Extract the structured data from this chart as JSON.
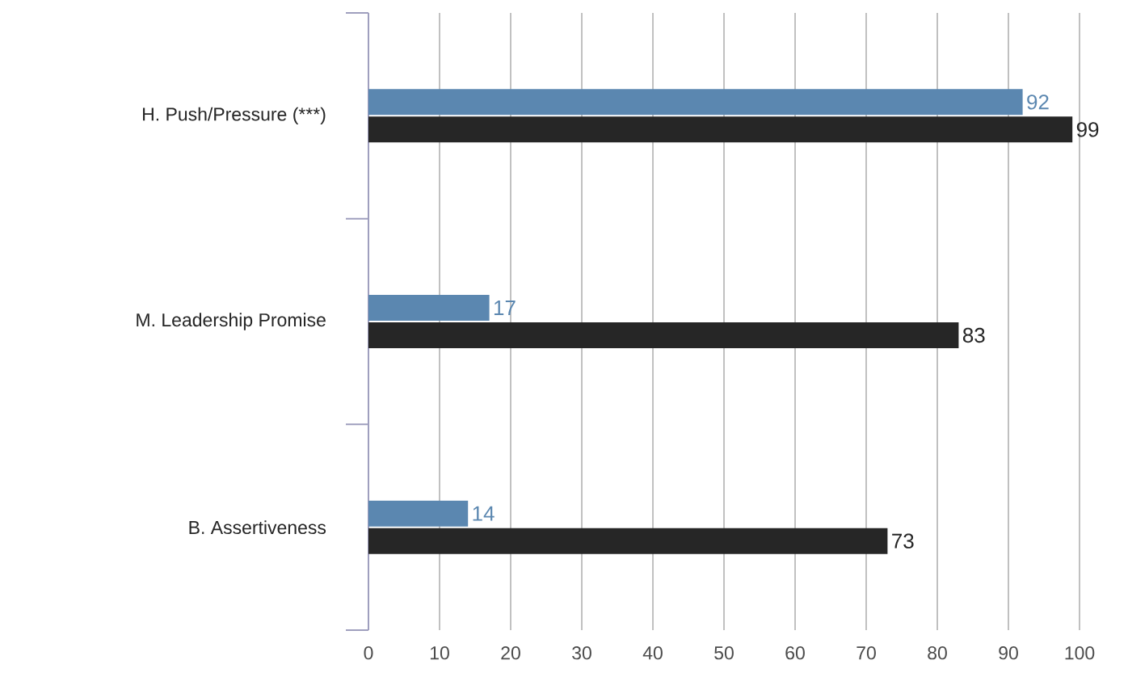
{
  "chart_data": {
    "type": "bar",
    "orientation": "horizontal",
    "categories": [
      "H. Push/Pressure (***)",
      "M. Leadership Promise",
      "B. Assertiveness"
    ],
    "series": [
      {
        "color": "#5b87b0",
        "values": [
          92,
          17,
          14
        ]
      },
      {
        "color": "#262626",
        "values": [
          99,
          83,
          73
        ]
      }
    ],
    "xlim": [
      0,
      100
    ],
    "xticks": [
      0,
      10,
      20,
      30,
      40,
      50,
      60,
      70,
      80,
      90,
      100
    ],
    "grid": "x",
    "data_labels": true
  }
}
